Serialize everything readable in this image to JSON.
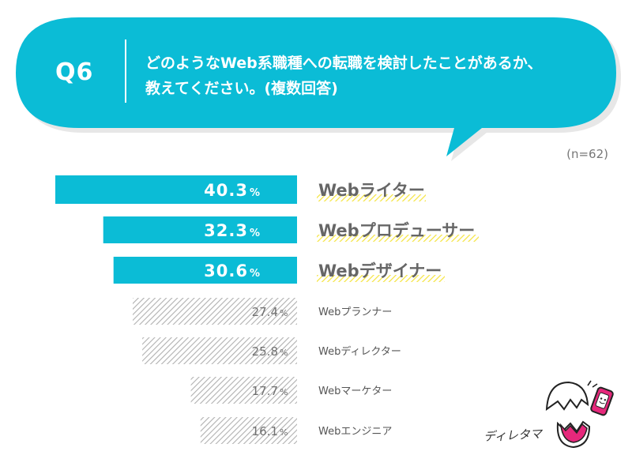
{
  "question": {
    "number": "Q6",
    "line1": "どのようなWeb系職種への転職を検討したことがあるか、",
    "line2": "教えてください。(複数回答)"
  },
  "sample": "(n=62)",
  "mascot": {
    "name": "ディレタマ",
    "icon": "egg-mascot-icon"
  },
  "colors": {
    "bubble": "#0bbcd6",
    "bar_top": "#0bbcd6",
    "hatch": "#b0b0b0",
    "underline": "#f5e43c"
  },
  "chart_data": {
    "type": "bar",
    "orientation": "horizontal",
    "unit": "%",
    "highlight_top_n": 3,
    "xlim": [
      0,
      50
    ],
    "categories": [
      "Webライター",
      "Webプロデューサー",
      "Webデザイナー",
      "Webプランナー",
      "Webディレクター",
      "Webマーケター",
      "Webエンジニア"
    ],
    "values": [
      40.3,
      32.3,
      30.6,
      27.4,
      25.8,
      17.7,
      16.1
    ],
    "value_labels": [
      "40.3",
      "32.3",
      "30.6",
      "27.4",
      "25.8",
      "17.7",
      "16.1"
    ]
  }
}
